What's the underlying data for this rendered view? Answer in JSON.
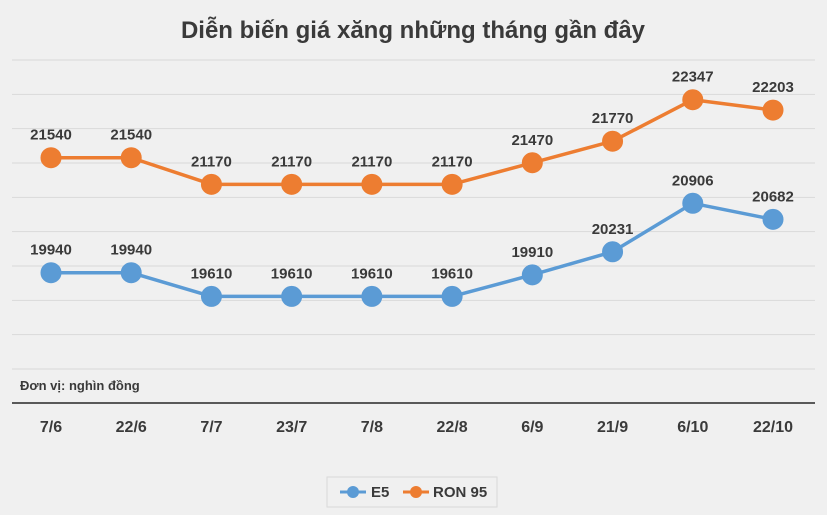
{
  "chart_data": {
    "type": "line",
    "title": "Diễn biến giá xăng những tháng gần đây",
    "unit_note": "Đơn vị: nghìn đồng",
    "categories": [
      "7/6",
      "22/6",
      "7/7",
      "23/7",
      "7/8",
      "22/8",
      "6/9",
      "21/9",
      "6/10",
      "22/10"
    ],
    "series": [
      {
        "name": "E5",
        "color": "#5b9bd5",
        "values": [
          19940,
          19940,
          19610,
          19610,
          19610,
          19610,
          19910,
          20231,
          20906,
          20682
        ],
        "labels": [
          "19940",
          "19940",
          "19610",
          "19610",
          "19610",
          "19610",
          "19910",
          "20231",
          "20906",
          "20682"
        ]
      },
      {
        "name": "RON 95",
        "color": "#ed7d31",
        "values": [
          21540,
          21540,
          21170,
          21170,
          21170,
          21170,
          21470,
          21770,
          22347,
          22203
        ],
        "labels": [
          "21540",
          "21540",
          "21170",
          "21170",
          "21170",
          "21170",
          "21470",
          "21770",
          "22347",
          "22203"
        ]
      }
    ],
    "ylim": [
      18600,
      22900
    ],
    "grid": true,
    "legend_position": "bottom",
    "axis_color": "#595959",
    "grid_color": "#d9d9d9"
  }
}
